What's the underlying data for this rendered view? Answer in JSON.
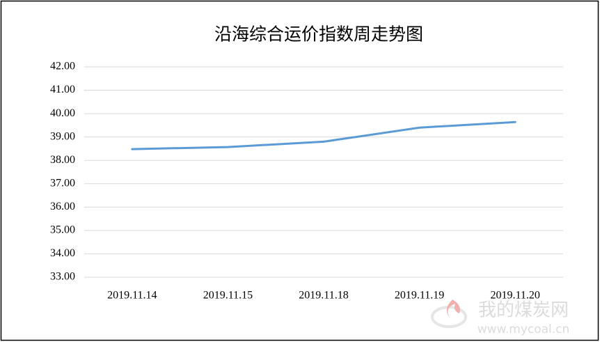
{
  "chart_data": {
    "type": "line",
    "title": "沿海综合运价指数周走势图",
    "categories": [
      "2019.11.14",
      "2019.11.15",
      "2019.11.18",
      "2019.11.19",
      "2019.11.20"
    ],
    "values": [
      38.48,
      38.57,
      38.8,
      39.4,
      39.64
    ],
    "color": "#5b9bd5",
    "ylim": [
      33,
      42
    ],
    "yticks": [
      {
        "value": 33,
        "label": "33.00"
      },
      {
        "value": 34,
        "label": "34.00"
      },
      {
        "value": 35,
        "label": "35.00"
      },
      {
        "value": 36,
        "label": "36.00"
      },
      {
        "value": 37,
        "label": "37.00"
      },
      {
        "value": 38,
        "label": "38.00"
      },
      {
        "value": 39,
        "label": "39.00"
      },
      {
        "value": 40,
        "label": "40.00"
      },
      {
        "value": 41,
        "label": "41.00"
      },
      {
        "value": 42,
        "label": "42.00"
      }
    ],
    "grid": true,
    "watermark": {
      "name": "我的煤炭网",
      "url": "www.mycoal.cn"
    }
  }
}
